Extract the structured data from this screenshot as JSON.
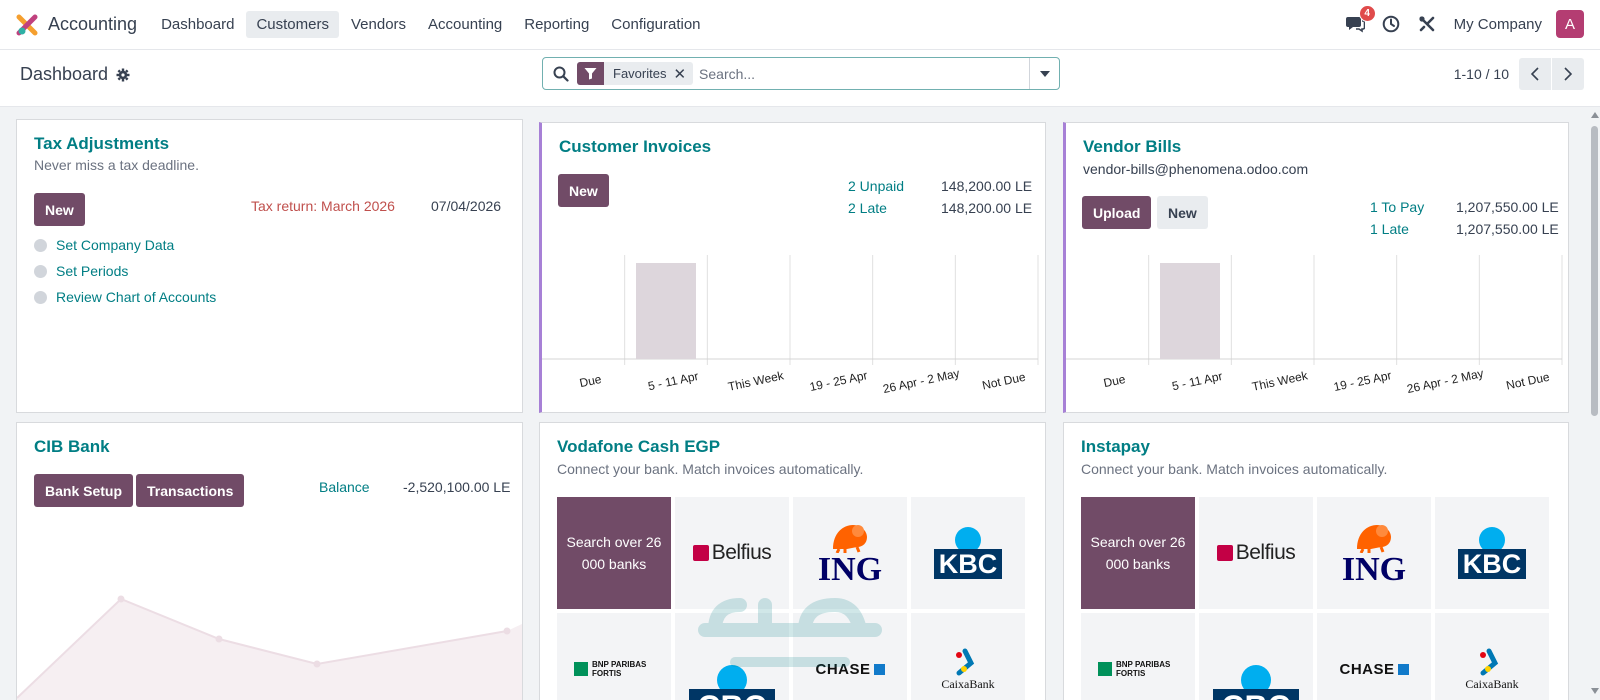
{
  "nav": {
    "app_name": "Accounting",
    "menu": [
      {
        "label": "Dashboard",
        "active": false
      },
      {
        "label": "Customers",
        "active": true
      },
      {
        "label": "Vendors",
        "active": false
      },
      {
        "label": "Accounting",
        "active": false
      },
      {
        "label": "Reporting",
        "active": false
      },
      {
        "label": "Configuration",
        "active": false
      }
    ],
    "messages_badge": "4",
    "company": "My Company",
    "avatar_letter": "A"
  },
  "control": {
    "title": "Dashboard",
    "facet_label": "Favorites",
    "search_placeholder": "Search...",
    "pager": "1-10 / 10"
  },
  "tax": {
    "title": "Tax Adjustments",
    "subtitle": "Never miss a tax deadline.",
    "new_label": "New",
    "return_label": "Tax return: March 2026",
    "return_date": "07/04/2026",
    "steps": [
      "Set Company Data",
      "Set Periods",
      "Review Chart of Accounts"
    ]
  },
  "customer_invoices": {
    "title": "Customer Invoices",
    "new_label": "New",
    "stats": [
      {
        "label": "2 Unpaid",
        "amount": "148,200.00 LE"
      },
      {
        "label": "2 Late",
        "amount": "148,200.00 LE"
      }
    ],
    "chart_data": {
      "type": "bar",
      "categories": [
        "Due",
        "5 - 11 Apr",
        "This Week",
        "19 - 25 Apr",
        "26 Apr - 2 May",
        "Not Due"
      ],
      "values": [
        0,
        1,
        0,
        0,
        0,
        0
      ],
      "highlight_color": "#ddd6dc"
    }
  },
  "vendor_bills": {
    "title": "Vendor Bills",
    "email": "vendor-bills@phenomena.odoo.com",
    "upload_label": "Upload",
    "new_label": "New",
    "stats": [
      {
        "label": "1 To Pay",
        "amount": "1,207,550.00 LE"
      },
      {
        "label": "1 Late",
        "amount": "1,207,550.00 LE"
      }
    ],
    "chart_data": {
      "type": "bar",
      "categories": [
        "Due",
        "5 - 11 Apr",
        "This Week",
        "19 - 25 Apr",
        "26 Apr - 2 May",
        "Not Due"
      ],
      "values": [
        0,
        1,
        0,
        0,
        0,
        0
      ],
      "highlight_color": "#ddd6dc"
    }
  },
  "cib": {
    "title": "CIB Bank",
    "bank_setup_label": "Bank Setup",
    "transactions_label": "Transactions",
    "balance_label": "Balance",
    "balance_value": "-2,520,100.00 LE"
  },
  "vodafone": {
    "title": "Vodafone Cash EGP",
    "subtitle": "Connect your bank. Match invoices automatically.",
    "search_tile": "Search over 26 000 banks",
    "banks": [
      "Belfius",
      "ING",
      "KBC",
      "BNP PARIBAS FORTIS",
      "CBC",
      "CHASE",
      "CaixaBank"
    ]
  },
  "instapay": {
    "title": "Instapay",
    "subtitle": "Connect your bank. Match invoices automatically.",
    "search_tile": "Search over 26 000 banks",
    "banks": [
      "Belfius",
      "ING",
      "KBC",
      "BNP PARIBAS FORTIS",
      "CBC",
      "CHASE",
      "CaixaBank"
    ]
  },
  "colors": {
    "primary": "#714b67",
    "link": "#017e84",
    "accent_border": "#a780d6",
    "danger": "#c0504d"
  }
}
